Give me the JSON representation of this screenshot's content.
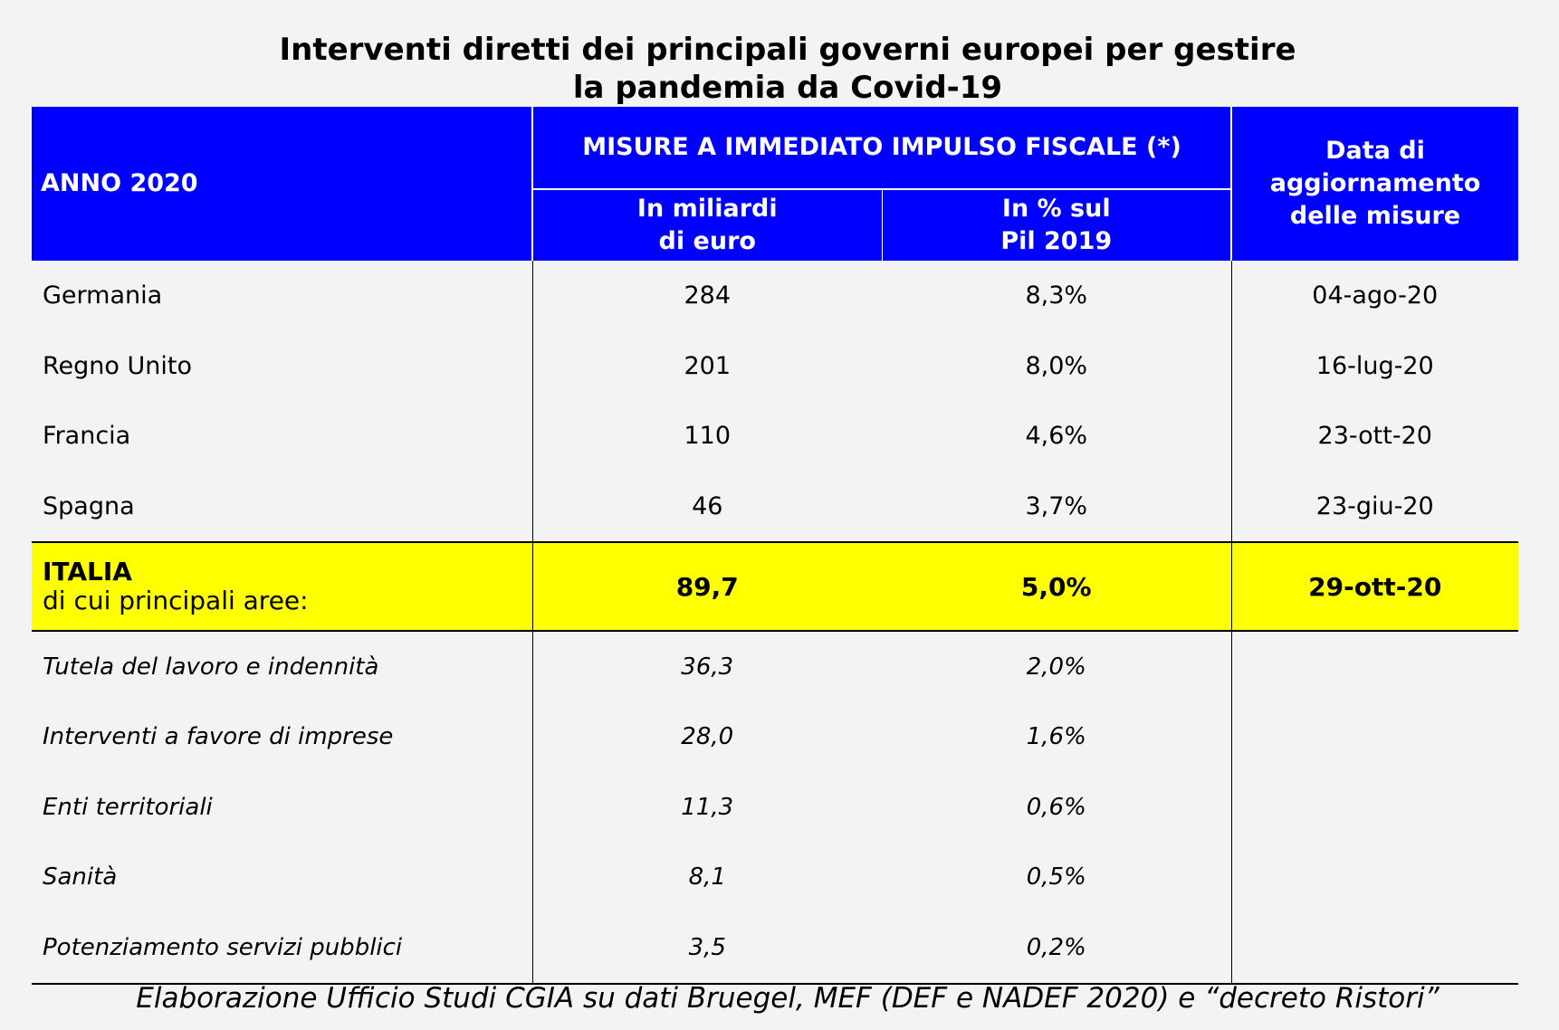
{
  "title": {
    "line1": "Interventi diretti dei principali governi europei per gestire",
    "line2": "la pandemia da Covid-19"
  },
  "header": {
    "anno": "ANNO 2020",
    "misure": "MISURE A IMMEDIATO IMPULSO FISCALE (*)",
    "col_miliardi_l1": "In miliardi",
    "col_miliardi_l2": "di euro",
    "col_pil_l1": "In % sul",
    "col_pil_l2": "Pil 2019",
    "col_data_l1": "Data di",
    "col_data_l2": "aggiornamento",
    "col_data_l3": "delle misure"
  },
  "countries": [
    {
      "name": "Germania",
      "miliardi": "284",
      "pil": "8,3%",
      "data": "04-ago-20"
    },
    {
      "name": "Regno Unito",
      "miliardi": "201",
      "pil": "8,0%",
      "data": "16-lug-20"
    },
    {
      "name": "Francia",
      "miliardi": "110",
      "pil": "4,6%",
      "data": "23-ott-20"
    },
    {
      "name": "Spagna",
      "miliardi": "46",
      "pil": "3,7%",
      "data": "23-giu-20"
    }
  ],
  "italia": {
    "name": "ITALIA",
    "subtitle": "di cui principali aree:",
    "miliardi": "89,7",
    "pil": "5,0%",
    "data": "29-ott-20"
  },
  "areas": [
    {
      "name": "Tutela del lavoro e indennità",
      "miliardi": "36,3",
      "pil": "2,0%"
    },
    {
      "name": "Interventi a favore di imprese",
      "miliardi": "28,0",
      "pil": "1,6%"
    },
    {
      "name": "Enti territoriali",
      "miliardi": "11,3",
      "pil": "0,6%"
    },
    {
      "name": "Sanità",
      "miliardi": "8,1",
      "pil": "0,5%"
    },
    {
      "name": "Potenziamento servizi pubblici",
      "miliardi": "3,5",
      "pil": "0,2%"
    }
  ],
  "source": "Elaborazione Ufficio Studi CGIA su dati Bruegel, MEF (DEF e NADEF 2020) e “decreto Ristori”",
  "colors": {
    "header_bg": "#0000ff",
    "italia_bg": "#ffff00",
    "page_bg": "#f3f3f3"
  }
}
